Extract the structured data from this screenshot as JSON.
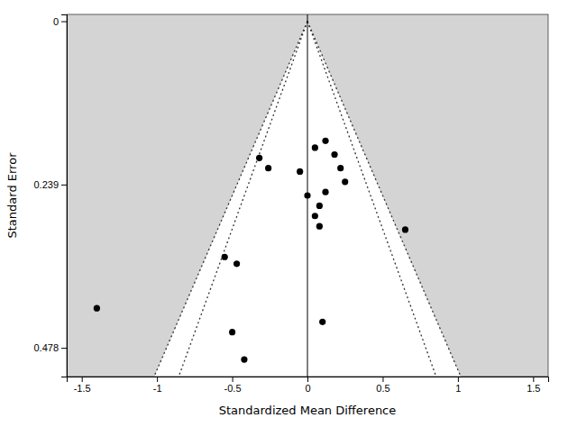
{
  "chart_data": {
    "type": "scatter",
    "xlabel": "Standardized Mean Difference",
    "ylabel": "Standard Error",
    "xlim": [
      -1.6,
      1.6
    ],
    "ylim": [
      0.52,
      -0.01
    ],
    "xticks": [
      -1.5,
      -1,
      -0.5,
      0,
      0.5,
      1,
      1.5
    ],
    "yticks": [
      0,
      0.239,
      0.478
    ],
    "colors": [
      "#d4d4d4",
      "#909090",
      "#ffffff"
    ],
    "series": [
      {
        "type": "scatter",
        "color": "#000000",
        "x": [
          -1.4,
          -0.55,
          -0.47,
          -0.5,
          -0.42,
          -0.32,
          -0.26,
          -0.05,
          0.0,
          0.05,
          0.12,
          0.18,
          0.22,
          0.25,
          0.12,
          0.08,
          0.05,
          0.08,
          0.1,
          0.65
        ],
        "values": [
          0.42,
          0.345,
          0.355,
          0.455,
          0.495,
          0.2,
          0.215,
          0.22,
          0.255,
          0.185,
          0.175,
          0.195,
          0.215,
          0.235,
          0.25,
          0.27,
          0.285,
          0.3,
          0.44,
          0.305
        ]
      },
      {
        "type": "line",
        "line_style": "dotted",
        "color": "#333333",
        "x": [
          0,
          1.01918128
        ],
        "values": [
          0,
          0.52
        ]
      },
      {
        "type": "line",
        "line_style": "dotted",
        "color": "#333333",
        "x": [
          0,
          -1.01918128
        ],
        "values": [
          0,
          0.52
        ]
      },
      {
        "type": "line",
        "line_style": "dotted",
        "color": "#333333",
        "x": [
          0,
          0.85532408
        ],
        "values": [
          0,
          0.52
        ]
      },
      {
        "type": "line",
        "line_style": "dotted",
        "color": "#333333",
        "x": [
          0,
          -0.85532408
        ],
        "values": [
          0,
          0.52
        ]
      },
      {
        "type": "line",
        "line_style": "solid",
        "color": "#000000",
        "x": [
          0,
          0
        ],
        "values": [
          -0.01,
          0.52
        ]
      }
    ]
  }
}
